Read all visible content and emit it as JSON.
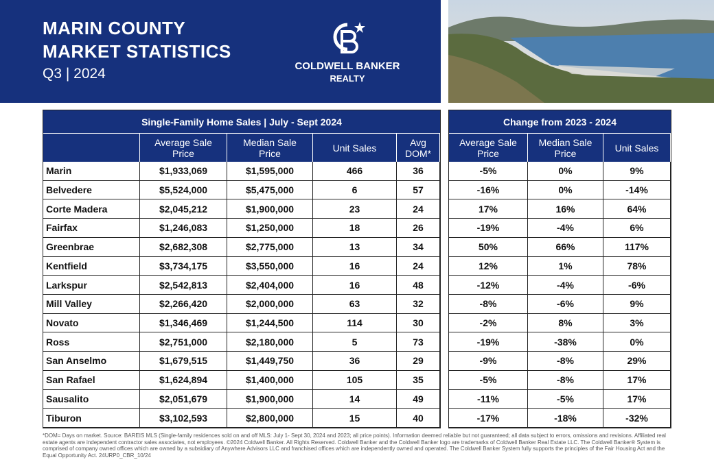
{
  "header": {
    "title_lines": [
      "MARIN COUNTY",
      "MARKET STATISTICS"
    ],
    "subtitle": "Q3 | 2024",
    "logo_lines": [
      "COLDWELL BANKER",
      "REALTY"
    ]
  },
  "sales_table": {
    "title": "Single-Family Home Sales | July - Sept 2024",
    "columns": [
      "Average Sale Price",
      "Median Sale Price",
      "Unit Sales",
      "Avg DOM*"
    ],
    "rows": [
      [
        "Marin",
        "$1,933,069",
        "$1,595,000",
        "466",
        "36"
      ],
      [
        "Belvedere",
        "$5,524,000",
        "$5,475,000",
        "6",
        "57"
      ],
      [
        "Corte Madera",
        "$2,045,212",
        "$1,900,000",
        "23",
        "24"
      ],
      [
        "Fairfax",
        "$1,246,083",
        "$1,250,000",
        "18",
        "26"
      ],
      [
        "Greenbrae",
        "$2,682,308",
        "$2,775,000",
        "13",
        "34"
      ],
      [
        "Kentfield",
        "$3,734,175",
        "$3,550,000",
        "16",
        "24"
      ],
      [
        "Larkspur",
        "$2,542,813",
        "$2,404,000",
        "16",
        "48"
      ],
      [
        "Mill Valley",
        "$2,266,420",
        "$2,000,000",
        "63",
        "32"
      ],
      [
        "Novato",
        "$1,346,469",
        "$1,244,500",
        "114",
        "30"
      ],
      [
        "Ross",
        "$2,751,000",
        "$2,180,000",
        "5",
        "73"
      ],
      [
        "San Anselmo",
        "$1,679,515",
        "$1,449,750",
        "36",
        "29"
      ],
      [
        "San Rafael",
        "$1,624,894",
        "$1,400,000",
        "105",
        "35"
      ],
      [
        "Sausalito",
        "$2,051,679",
        "$1,900,000",
        "14",
        "49"
      ],
      [
        "Tiburon",
        "$3,102,593",
        "$2,800,000",
        "15",
        "40"
      ]
    ]
  },
  "change_table": {
    "title": "Change from 2023 - 2024",
    "columns": [
      "Average Sale Price",
      "Median Sale Price",
      "Unit Sales"
    ],
    "rows": [
      [
        "-5%",
        "0%",
        "9%"
      ],
      [
        "-16%",
        "0%",
        "-14%"
      ],
      [
        "17%",
        "16%",
        "64%"
      ],
      [
        "-19%",
        "-4%",
        "6%"
      ],
      [
        "50%",
        "66%",
        "117%"
      ],
      [
        "12%",
        "1%",
        "78%"
      ],
      [
        "-12%",
        "-4%",
        "-6%"
      ],
      [
        "-8%",
        "-6%",
        "9%"
      ],
      [
        "-2%",
        "8%",
        "3%"
      ],
      [
        "-19%",
        "-38%",
        "0%"
      ],
      [
        "-9%",
        "-8%",
        "29%"
      ],
      [
        "-5%",
        "-8%",
        "17%"
      ],
      [
        "-11%",
        "-5%",
        "17%"
      ],
      [
        "-17%",
        "-18%",
        "-32%"
      ]
    ]
  },
  "footnote": "*DOM= Days on market. Source: BAREIS MLS (Single-family residences sold on and off MLS: July 1- Sept 30, 2024 and 2023; all price points). Information deemed reliable but not guaranteed; all data subject to errors, omissions and revisions. Affiliated real estate agents are independent contractor sales associates, not employees. ©2024 Coldwell Banker. All Rights Reserved. Coldwell Banker and the Coldwell Banker logo are trademarks of Coldwell Banker Real Estate LLC. The Coldwell Banker® System is comprised of company owned offices which are owned by a subsidiary of Anywhere Advisors LLC and franchised offices which are independently owned and operated. The Coldwell Banker System fully supports the principles of the Fair Housing Act and the Equal Opportunity Act. 24URP0_CBR_10/24"
}
